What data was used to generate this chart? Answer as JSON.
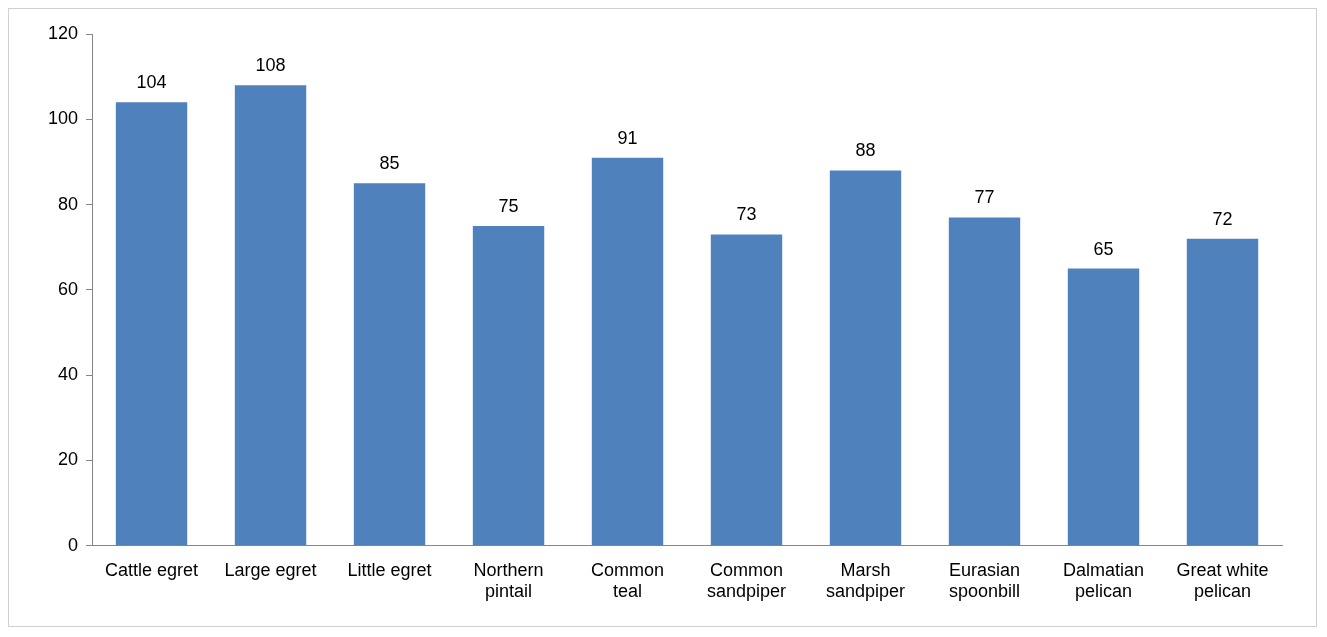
{
  "chart_data": {
    "type": "bar",
    "categories": [
      "Cattle egret",
      "Large egret",
      "Little egret",
      "Northern pintail",
      "Common teal",
      "Common sandpiper",
      "Marsh sandpiper",
      "Eurasian spoonbill",
      "Dalmatian pelican",
      "Great white pelican"
    ],
    "values": [
      104,
      108,
      85,
      75,
      91,
      73,
      88,
      77,
      65,
      72
    ],
    "color": "#4f81bd",
    "ylim": [
      0,
      120
    ],
    "yticks": [
      0,
      20,
      40,
      60,
      80,
      100,
      120
    ],
    "grid": false,
    "legend": false,
    "data_labels": true
  }
}
